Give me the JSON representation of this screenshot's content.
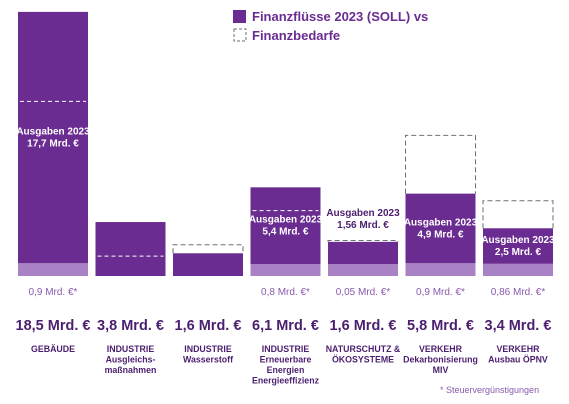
{
  "legend": {
    "soll": "Finanzflüsse 2023 (SOLL) vs",
    "bedarf": "Finanzbedarfe"
  },
  "footnote": "* Steuervergünstigungen",
  "colors": {
    "bar": "#6a2c91",
    "tax": "#a882c4",
    "dashed": "#6e6e6e",
    "text": "#4b1f6f",
    "light_text": "#8a5aae"
  },
  "chart_data": {
    "type": "bar",
    "unit": "Mrd. €",
    "ylim": [
      0,
      19
    ],
    "categories": [
      {
        "lines": [
          "GEBÄUDE"
        ],
        "total_label": "18,5 Mrd. €",
        "bar_label": [
          "Ausgaben 2023",
          "17,7 Mrd. €"
        ],
        "label_position": "inside",
        "tax_label": "0,9 Mrd. €*",
        "spending": 17.7,
        "tax": 0.9,
        "need": 12.3
      },
      {
        "lines": [
          "INDUSTRIE",
          "Ausgleichs-",
          "maßnahmen"
        ],
        "total_label": "3,8 Mrd. €",
        "bar_label": [],
        "label_position": "none",
        "tax_label": "",
        "spending": 3.8,
        "tax": 0,
        "need": 1.4
      },
      {
        "lines": [
          "INDUSTRIE",
          "Wasserstoff"
        ],
        "total_label": "1,6 Mrd. €",
        "bar_label": [],
        "label_position": "none",
        "tax_label": "",
        "spending": 1.6,
        "tax": 0,
        "need": 2.2
      },
      {
        "lines": [
          "INDUSTRIE",
          "Erneuerbare",
          "Energien",
          "Energieeffizienz"
        ],
        "total_label": "6,1 Mrd. €",
        "bar_label": [
          "Ausgaben 2023",
          "5,4 Mrd. €"
        ],
        "label_position": "inside",
        "tax_label": "0,8 Mrd. €*",
        "spending": 5.4,
        "tax": 0.8,
        "need": 4.6
      },
      {
        "lines": [
          "NATURSCHUTZ &",
          "ÖKOSYSTEME"
        ],
        "total_label": "1,6 Mrd. €",
        "bar_label": [
          "Ausgaben 2023",
          "1,56 Mrd. €"
        ],
        "label_position": "above",
        "tax_label": "0,05 Mrd. €*",
        "spending": 1.56,
        "tax": 0.05,
        "need": 2.5
      },
      {
        "lines": [
          "VERKEHR",
          "Dekarbonisierung",
          "MIV"
        ],
        "total_label": "5,8 Mrd. €",
        "bar_label": [
          "Ausgaben 2023",
          "4,9 Mrd. €"
        ],
        "label_position": "inside",
        "tax_label": "0,9 Mrd. €*",
        "spending": 4.9,
        "tax": 0.9,
        "need": 9.9
      },
      {
        "lines": [
          "VERKEHR",
          "Ausbau ÖPNV"
        ],
        "total_label": "3,4 Mrd. €",
        "bar_label": [
          "Ausgaben 2023",
          "2,5 Mrd. €"
        ],
        "label_position": "inside",
        "tax_label": "0,86 Mrd. €*",
        "spending": 2.5,
        "tax": 0.86,
        "need": 5.3
      }
    ]
  }
}
